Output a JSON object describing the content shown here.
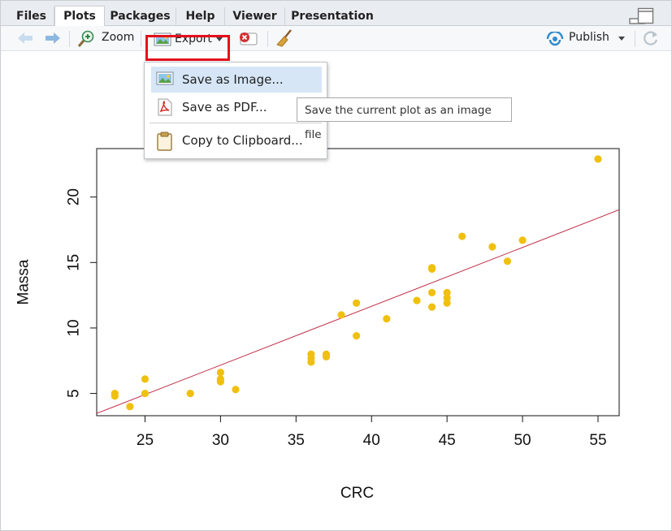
{
  "tabs": [
    {
      "label": "Files"
    },
    {
      "label": "Plots"
    },
    {
      "label": "Packages"
    },
    {
      "label": "Help"
    },
    {
      "label": "Viewer"
    },
    {
      "label": "Presentation"
    }
  ],
  "toolbar": {
    "zoom_label": "Zoom",
    "export_label": "Export",
    "publish_label": "Publish"
  },
  "export_menu": {
    "items": [
      {
        "label": "Save as Image...",
        "icon": "image-icon"
      },
      {
        "label": "Save as PDF...",
        "icon": "pdf-icon"
      },
      {
        "label": "Copy to Clipboard...",
        "icon": "clipboard-icon"
      }
    ]
  },
  "tooltip": "Save the current plot as an image file",
  "colors": {
    "point": "#f0c010",
    "regression_line": "#c0304a",
    "highlight": "#e3101c",
    "menu_hover": "#d6e6f6"
  },
  "chart_data": {
    "type": "scatter",
    "xlabel": "CRC",
    "ylabel": "Massa",
    "xlim": [
      21.8,
      56.4
    ],
    "ylim": [
      3.3,
      23.7
    ],
    "x_ticks": [
      25,
      30,
      35,
      40,
      45,
      50,
      55
    ],
    "y_ticks": [
      5,
      10,
      15,
      20
    ],
    "grid": false,
    "points": [
      [
        23,
        5.0
      ],
      [
        23,
        4.8
      ],
      [
        24,
        4.0
      ],
      [
        25,
        6.1
      ],
      [
        25,
        5.0
      ],
      [
        28,
        5.0
      ],
      [
        30,
        6.6
      ],
      [
        30,
        6.1
      ],
      [
        30,
        5.9
      ],
      [
        31,
        5.3
      ],
      [
        36,
        8.0
      ],
      [
        36,
        7.7
      ],
      [
        36,
        7.4
      ],
      [
        37,
        8.0
      ],
      [
        37,
        7.8
      ],
      [
        38,
        11.0
      ],
      [
        39,
        11.9
      ],
      [
        39,
        9.4
      ],
      [
        41,
        10.7
      ],
      [
        43,
        12.1
      ],
      [
        44,
        14.6
      ],
      [
        44,
        14.5
      ],
      [
        44,
        12.7
      ],
      [
        44,
        11.6
      ],
      [
        45,
        12.7
      ],
      [
        45,
        12.3
      ],
      [
        45,
        11.9
      ],
      [
        46,
        17.0
      ],
      [
        48,
        16.2
      ],
      [
        49,
        15.1
      ],
      [
        50,
        16.7
      ],
      [
        55,
        22.9
      ]
    ],
    "regression": {
      "intercept": -6.32,
      "slope": 0.4494
    }
  }
}
